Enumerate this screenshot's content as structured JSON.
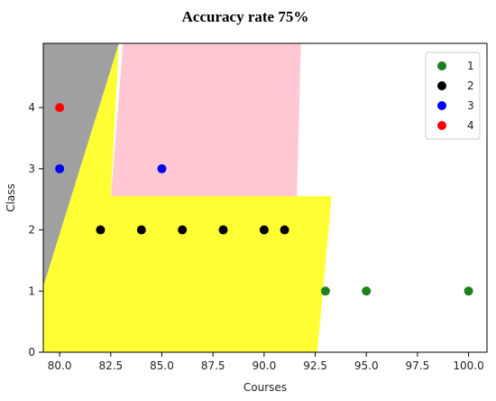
{
  "chart_data": {
    "type": "scatter",
    "title": "Accuracy rate 75%",
    "xlabel": "Courses",
    "ylabel": "Class",
    "xlim": [
      79.2,
      100.9
    ],
    "ylim": [
      0,
      5.05
    ],
    "x_ticks": [
      "80.0",
      "82.5",
      "85.0",
      "87.5",
      "90.0",
      "92.5",
      "95.0",
      "97.5",
      "100.0"
    ],
    "y_ticks": [
      "0",
      "1",
      "2",
      "3",
      "4"
    ],
    "grid": false,
    "legend_position": "top-right",
    "series": [
      {
        "name": "1",
        "color": "#1f7f1f",
        "points": [
          [
            93,
            1
          ],
          [
            95,
            1
          ],
          [
            100,
            1
          ]
        ]
      },
      {
        "name": "2",
        "color": "#000000",
        "points": [
          [
            82,
            2
          ],
          [
            84,
            2
          ],
          [
            86,
            2
          ],
          [
            88,
            2
          ],
          [
            90,
            2
          ],
          [
            91,
            2
          ]
        ]
      },
      {
        "name": "3",
        "color": "#0000ff",
        "points": [
          [
            80,
            3
          ],
          [
            85,
            3
          ]
        ]
      },
      {
        "name": "4",
        "color": "#ff0000",
        "points": [
          [
            80,
            4
          ]
        ]
      }
    ],
    "regions": [
      {
        "label": "4",
        "color": "#a0a0a0",
        "polygon": [
          [
            79.2,
            5.05
          ],
          [
            82.9,
            5.05
          ],
          [
            79.2,
            1.07
          ]
        ]
      },
      {
        "label": "3",
        "color": "#ffc8d2",
        "polygon": [
          [
            83.1,
            5.05
          ],
          [
            91.8,
            5.05
          ],
          [
            91.6,
            2.5
          ],
          [
            82.5,
            2.5
          ]
        ]
      },
      {
        "label": "2",
        "color": "#ffff33",
        "polygon": [
          [
            82.9,
            5.05
          ],
          [
            79.2,
            1.07
          ],
          [
            79.2,
            0
          ],
          [
            92.6,
            0
          ],
          [
            93.3,
            2.55
          ],
          [
            82.5,
            2.55
          ]
        ]
      }
    ]
  }
}
